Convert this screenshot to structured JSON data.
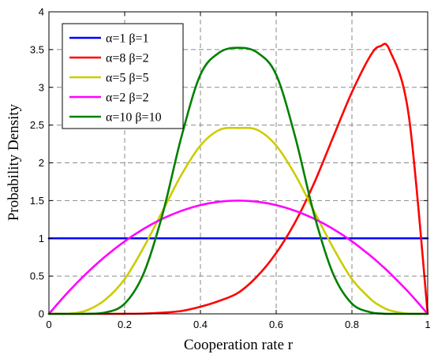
{
  "chart_data": {
    "type": "line",
    "title": "",
    "xlabel": "Cooperation rate r",
    "ylabel": "Probability Density",
    "xlim": [
      0,
      1
    ],
    "ylim": [
      0,
      4
    ],
    "xticks": [
      0,
      0.2,
      0.4,
      0.6,
      0.8,
      1
    ],
    "xtick_labels": [
      "0",
      "0.2",
      "0.4",
      "0.6",
      "0.8",
      "1"
    ],
    "yticks": [
      0,
      0.5,
      1,
      1.5,
      2,
      2.5,
      3,
      3.5,
      4
    ],
    "ytick_labels": [
      "0",
      "0.5",
      "1",
      "1.5",
      "2",
      "2.5",
      "3",
      "3.5",
      "4"
    ],
    "grid": true,
    "legend_position": "top-left",
    "x": [
      0,
      0.05,
      0.1,
      0.15,
      0.2,
      0.25,
      0.3,
      0.35,
      0.4,
      0.45,
      0.5,
      0.55,
      0.6,
      0.65,
      0.7,
      0.75,
      0.8,
      0.85,
      0.875,
      0.9,
      0.95,
      1
    ],
    "series": [
      {
        "name": "α=1 β=1",
        "color": "#0000ff",
        "values": [
          1,
          1,
          1,
          1,
          1,
          1,
          1,
          1,
          1,
          1,
          1,
          1,
          1,
          1,
          1,
          1,
          1,
          1,
          1,
          1,
          1,
          1
        ]
      },
      {
        "name": "α=8 β=2",
        "color": "#ff0000",
        "values": [
          0,
          0,
          0,
          0,
          0.001,
          0.004,
          0.015,
          0.038,
          0.094,
          0.172,
          0.28,
          0.498,
          0.806,
          1.213,
          1.729,
          2.336,
          2.936,
          3.429,
          3.545,
          3.487,
          2.628,
          0
        ]
      },
      {
        "name": "α=5 β=5",
        "color": "#cccc00",
        "values": [
          0,
          0.001,
          0.046,
          0.193,
          0.46,
          0.878,
          1.361,
          1.843,
          2.229,
          2.436,
          2.461,
          2.436,
          2.229,
          1.843,
          1.361,
          0.878,
          0.46,
          0.193,
          0.105,
          0.046,
          0.001,
          0
        ]
      },
      {
        "name": "α=2 β=2",
        "color": "#ff00ff",
        "values": [
          0,
          0.285,
          0.54,
          0.765,
          0.96,
          1.125,
          1.26,
          1.365,
          1.44,
          1.485,
          1.5,
          1.485,
          1.44,
          1.365,
          1.26,
          1.125,
          0.96,
          0.765,
          0.656,
          0.54,
          0.285,
          0
        ]
      },
      {
        "name": "α=10 β=10",
        "color": "#008000",
        "values": [
          0,
          0,
          0,
          0.019,
          0.135,
          0.534,
          1.32,
          2.347,
          3.168,
          3.461,
          3.524,
          3.461,
          3.168,
          2.347,
          1.32,
          0.534,
          0.135,
          0.019,
          0.005,
          0,
          0,
          0
        ]
      }
    ]
  }
}
